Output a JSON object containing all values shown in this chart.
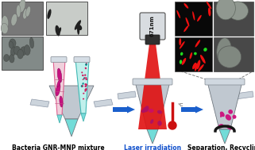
{
  "label1": "Bacteria GNR-MNP mixture",
  "label2": "Laser irradiation",
  "label3": "Separation, Recycling",
  "laser_label": "671nm",
  "bg_color": "#ffffff",
  "arrow_color": "#1a5fcc",
  "label_fontsize": 5.5,
  "label2_fontsize": 5.5,
  "laser_fontsize": 5.0,
  "tube_gray": "#c0c8d0",
  "tube_silver": "#d8dde2",
  "tip_cyan": "#72dcd8",
  "laser_red": "#e01008",
  "thermo_red": "#cc1010",
  "magenta": "#cc1080",
  "teal": "#208080"
}
